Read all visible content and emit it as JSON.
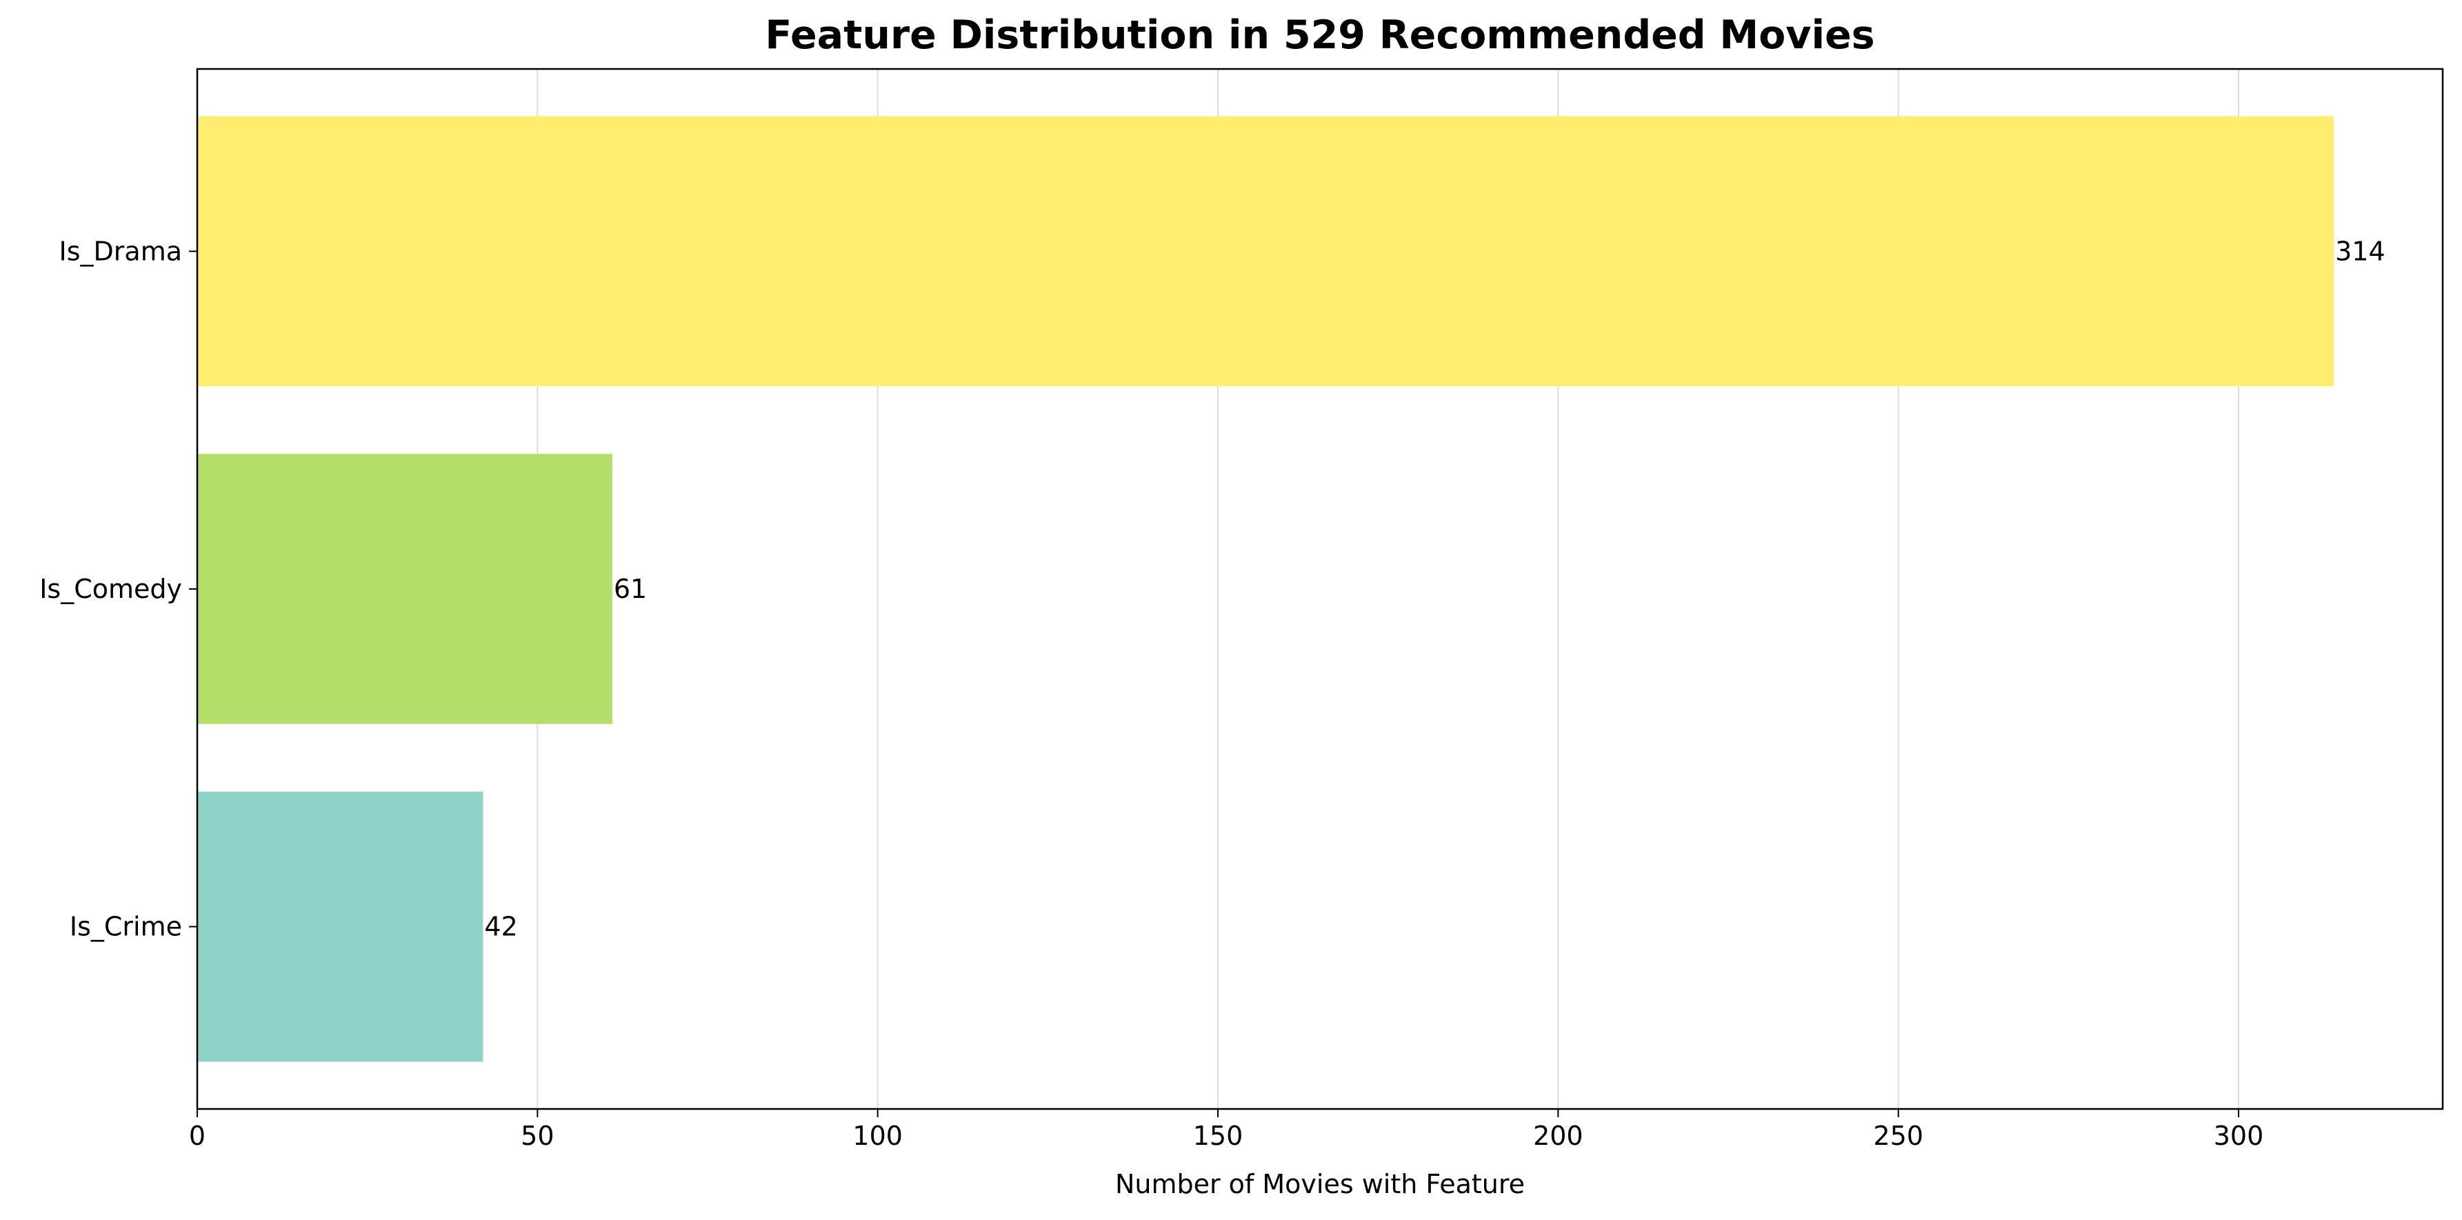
{
  "chart_data": {
    "type": "bar",
    "orientation": "horizontal",
    "title": "Feature Distribution in 529 Recommended Movies",
    "xlabel": "Number of Movies with Feature",
    "ylabel": "",
    "categories": [
      "Is_Crime",
      "Is_Comedy",
      "Is_Drama"
    ],
    "values": [
      42,
      61,
      314
    ],
    "data_labels": [
      "42",
      "61",
      "314"
    ],
    "colors": [
      "#8dd3c7",
      "#b3de69",
      "#ffed6f"
    ],
    "xlim": [
      0,
      330
    ],
    "xticks": [
      0,
      50,
      100,
      150,
      200,
      250,
      300
    ],
    "xtick_labels": [
      "0",
      "50",
      "100",
      "150",
      "200",
      "250",
      "300"
    ],
    "grid": "vertical",
    "legend": "none"
  }
}
